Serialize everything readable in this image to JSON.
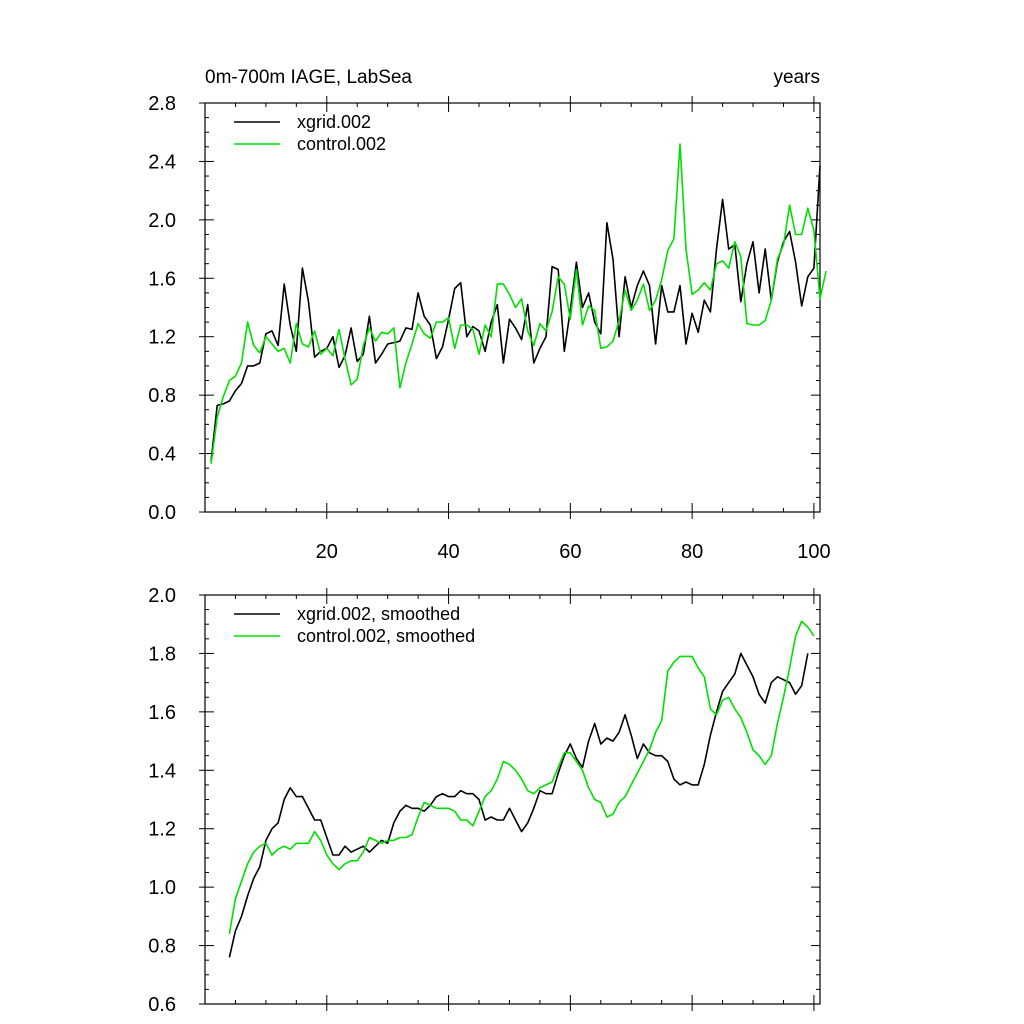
{
  "chart_data": [
    {
      "type": "line",
      "title": "0m-700m IAGE, LabSea",
      "right_title": "years",
      "xlim": [
        0,
        101
      ],
      "ylim": [
        0,
        2.8
      ],
      "x_ticks": [
        20,
        40,
        60,
        80,
        100
      ],
      "y_ticks": [
        0.0,
        0.4,
        0.8,
        1.2,
        1.6,
        2.0,
        2.4,
        2.8
      ],
      "y_tick_labels": [
        "0.0",
        "0.4",
        "0.8",
        "1.2",
        "1.6",
        "2.0",
        "2.4",
        "2.8"
      ],
      "legend_position": "top-left",
      "x_start": 1,
      "series": [
        {
          "name": "xgrid.002",
          "color": "#000000",
          "values": [
            0.35,
            0.73,
            0.74,
            0.76,
            0.83,
            0.88,
            1.0,
            1.0,
            1.02,
            1.22,
            1.24,
            1.14,
            1.56,
            1.28,
            1.1,
            1.67,
            1.44,
            1.06,
            1.1,
            1.12,
            1.2,
            0.99,
            1.07,
            1.26,
            1.03,
            1.08,
            1.34,
            1.02,
            1.08,
            1.15,
            1.16,
            1.17,
            1.26,
            1.25,
            1.5,
            1.34,
            1.28,
            1.05,
            1.13,
            1.32,
            1.53,
            1.57,
            1.2,
            1.27,
            1.24,
            1.1,
            1.3,
            1.42,
            1.02,
            1.32,
            1.26,
            1.18,
            1.42,
            1.02,
            1.12,
            1.2,
            1.68,
            1.66,
            1.1,
            1.38,
            1.71,
            1.4,
            1.5,
            1.3,
            1.22,
            1.98,
            1.73,
            1.2,
            1.61,
            1.4,
            1.55,
            1.65,
            1.55,
            1.15,
            1.55,
            1.37,
            1.37,
            1.55,
            1.15,
            1.36,
            1.23,
            1.45,
            1.37,
            1.8,
            2.14,
            1.8,
            1.83,
            1.44,
            1.7,
            1.85,
            1.5,
            1.8,
            1.45,
            1.71,
            1.85,
            1.92,
            1.71,
            1.41,
            1.61,
            1.67,
            2.37
          ]
        },
        {
          "name": "control.002",
          "color": "#00e000",
          "values": [
            0.33,
            0.65,
            0.79,
            0.9,
            0.93,
            1.02,
            1.3,
            1.14,
            1.09,
            1.2,
            1.15,
            1.1,
            1.12,
            1.02,
            1.29,
            1.15,
            1.13,
            1.24,
            1.08,
            1.12,
            1.07,
            1.25,
            1.05,
            0.87,
            0.91,
            1.14,
            1.26,
            1.17,
            1.23,
            1.22,
            1.26,
            0.85,
            1.02,
            1.15,
            1.29,
            1.22,
            1.19,
            1.3,
            1.3,
            1.33,
            1.12,
            1.28,
            1.28,
            1.25,
            1.08,
            1.28,
            1.2,
            1.56,
            1.56,
            1.49,
            1.4,
            1.46,
            1.24,
            1.14,
            1.29,
            1.24,
            1.37,
            1.61,
            1.56,
            1.32,
            1.66,
            1.28,
            1.41,
            1.38,
            1.12,
            1.13,
            1.17,
            1.31,
            1.52,
            1.38,
            1.45,
            1.56,
            1.38,
            1.45,
            1.59,
            1.79,
            1.87,
            2.52,
            1.8,
            1.49,
            1.52,
            1.57,
            1.52,
            1.7,
            1.72,
            1.67,
            1.85,
            1.75,
            1.29,
            1.28,
            1.28,
            1.31,
            1.45,
            1.73,
            1.83,
            2.1,
            1.9,
            1.9,
            2.08,
            1.93,
            1.46,
            1.65
          ]
        }
      ]
    },
    {
      "type": "line",
      "title": "",
      "xlim": [
        0,
        101
      ],
      "ylim": [
        0.6,
        2.0
      ],
      "y_ticks": [
        0.6,
        0.8,
        1.0,
        1.2,
        1.4,
        1.6,
        1.8,
        2.0
      ],
      "y_tick_labels": [
        "0.6",
        "0.8",
        "1.0",
        "1.2",
        "1.4",
        "1.6",
        "1.8",
        "2.0"
      ],
      "legend_position": "top-left",
      "x_start": 4,
      "series": [
        {
          "name": "xgrid.002, smoothed",
          "color": "#000000",
          "values": [
            0.76,
            0.85,
            0.9,
            0.97,
            1.03,
            1.07,
            1.16,
            1.2,
            1.22,
            1.3,
            1.34,
            1.31,
            1.31,
            1.27,
            1.23,
            1.23,
            1.17,
            1.11,
            1.11,
            1.14,
            1.12,
            1.13,
            1.14,
            1.12,
            1.14,
            1.16,
            1.15,
            1.22,
            1.26,
            1.28,
            1.27,
            1.27,
            1.26,
            1.28,
            1.31,
            1.32,
            1.31,
            1.31,
            1.33,
            1.32,
            1.32,
            1.3,
            1.23,
            1.24,
            1.23,
            1.23,
            1.27,
            1.23,
            1.19,
            1.22,
            1.27,
            1.33,
            1.32,
            1.32,
            1.39,
            1.45,
            1.49,
            1.44,
            1.41,
            1.5,
            1.56,
            1.49,
            1.51,
            1.5,
            1.53,
            1.59,
            1.52,
            1.44,
            1.49,
            1.46,
            1.45,
            1.45,
            1.43,
            1.37,
            1.35,
            1.36,
            1.35,
            1.35,
            1.42,
            1.52,
            1.6,
            1.67,
            1.7,
            1.73,
            1.8,
            1.76,
            1.72,
            1.66,
            1.63,
            1.7,
            1.72,
            1.71,
            1.7,
            1.66,
            1.69,
            1.8
          ]
        },
        {
          "name": "control.002, smoothed",
          "color": "#00e000",
          "values": [
            0.84,
            0.96,
            1.02,
            1.08,
            1.12,
            1.14,
            1.15,
            1.11,
            1.13,
            1.14,
            1.13,
            1.15,
            1.15,
            1.15,
            1.19,
            1.16,
            1.11,
            1.08,
            1.06,
            1.08,
            1.09,
            1.09,
            1.12,
            1.17,
            1.16,
            1.15,
            1.16,
            1.16,
            1.17,
            1.17,
            1.18,
            1.24,
            1.29,
            1.28,
            1.27,
            1.27,
            1.27,
            1.26,
            1.23,
            1.23,
            1.21,
            1.26,
            1.31,
            1.33,
            1.37,
            1.43,
            1.42,
            1.4,
            1.37,
            1.33,
            1.32,
            1.34,
            1.35,
            1.36,
            1.41,
            1.46,
            1.46,
            1.43,
            1.4,
            1.34,
            1.3,
            1.29,
            1.24,
            1.25,
            1.29,
            1.31,
            1.35,
            1.39,
            1.43,
            1.47,
            1.53,
            1.57,
            1.74,
            1.77,
            1.79,
            1.79,
            1.79,
            1.75,
            1.72,
            1.61,
            1.59,
            1.64,
            1.65,
            1.61,
            1.58,
            1.53,
            1.47,
            1.45,
            1.42,
            1.45,
            1.56,
            1.65,
            1.75,
            1.86,
            1.91,
            1.89,
            1.86
          ]
        }
      ]
    }
  ]
}
